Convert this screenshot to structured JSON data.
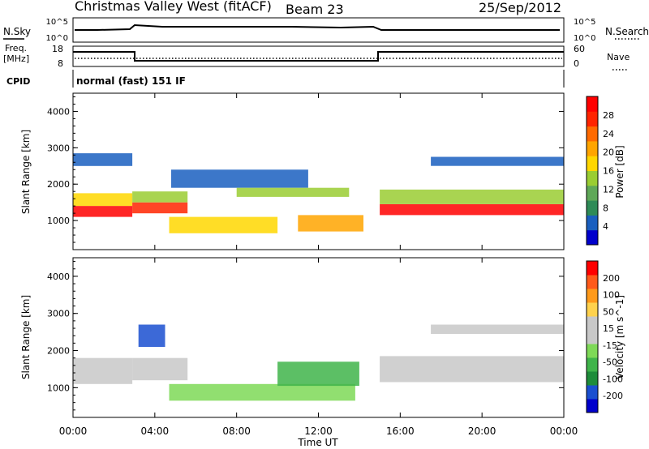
{
  "header": {
    "station": "Christmas Valley West (fitACF)",
    "beam": "Beam 23",
    "date": "25/Sep/2012"
  },
  "noise_panel": {
    "left_label": "N.Sky",
    "left_ticks": [
      "10^5",
      "10^0"
    ],
    "right_label": "N.Search",
    "right_ticks": [
      "10^5",
      "10^0"
    ]
  },
  "freq_panel": {
    "left_label_1": "Freq.",
    "left_label_2": "[MHz]",
    "left_ticks": [
      "18",
      "8"
    ],
    "right_label": "Nave",
    "right_ticks": [
      "60",
      "0"
    ]
  },
  "cpid": {
    "label": "CPID",
    "mode": "normal (fast) 151 IF"
  },
  "x_axis": {
    "title": "Time UT",
    "ticks": [
      "00:00",
      "04:00",
      "08:00",
      "12:00",
      "16:00",
      "20:00",
      "00:00"
    ]
  },
  "chart_data": [
    {
      "type": "heatmap",
      "name": "Power",
      "ylabel": "Slant Range [km]",
      "xlabel": "Time UT",
      "xlim_hours": [
        0,
        24
      ],
      "ylim": [
        200,
        4500
      ],
      "yticks": [
        "4000",
        "3000",
        "2000",
        "1000"
      ],
      "colorbar": {
        "title": "Power [dB]",
        "ticks": [
          "28",
          "24",
          "20",
          "16",
          "12",
          "8",
          "4"
        ],
        "colors": [
          "#0000cc",
          "#1a5fbf",
          "#2e8b57",
          "#5fa858",
          "#9acd32",
          "#ffd700",
          "#ffa500",
          "#ff6a00",
          "#ff2400",
          "#ff0000"
        ]
      },
      "bands": [
        {
          "t0": 0.0,
          "t1": 2.9,
          "r0": 1100,
          "r1": 1400,
          "level": 9
        },
        {
          "t0": 0.0,
          "t1": 2.9,
          "r0": 1400,
          "r1": 1750,
          "level": 5
        },
        {
          "t0": 0.0,
          "t1": 2.9,
          "r0": 2500,
          "r1": 2850,
          "level": 1
        },
        {
          "t0": 2.9,
          "t1": 5.6,
          "r0": 1200,
          "r1": 1500,
          "level": 8
        },
        {
          "t0": 2.9,
          "t1": 5.6,
          "r0": 1500,
          "r1": 1800,
          "level": 4
        },
        {
          "t0": 4.8,
          "t1": 11.5,
          "r0": 1900,
          "r1": 2400,
          "level": 1
        },
        {
          "t0": 8.0,
          "t1": 13.5,
          "r0": 1650,
          "r1": 1900,
          "level": 4
        },
        {
          "t0": 4.7,
          "t1": 10.0,
          "r0": 650,
          "r1": 1100,
          "level": 5
        },
        {
          "t0": 11.0,
          "t1": 14.2,
          "r0": 700,
          "r1": 1150,
          "level": 6
        },
        {
          "t0": 15.0,
          "t1": 24.0,
          "r0": 1150,
          "r1": 1450,
          "level": 9
        },
        {
          "t0": 15.0,
          "t1": 24.0,
          "r0": 1450,
          "r1": 1850,
          "level": 4
        },
        {
          "t0": 17.5,
          "t1": 24.0,
          "r0": 2500,
          "r1": 2750,
          "level": 1
        }
      ]
    },
    {
      "type": "heatmap",
      "name": "Velocity",
      "ylabel": "Slant Range [km]",
      "xlabel": "Time UT",
      "xlim_hours": [
        0,
        24
      ],
      "ylim": [
        200,
        4500
      ],
      "yticks": [
        "4000",
        "3000",
        "2000",
        "1000"
      ],
      "colorbar": {
        "title": "Velocity [m s^-1]",
        "ticks": [
          "200",
          "100",
          "50",
          "15",
          "-15",
          "-50",
          "-100",
          "-200"
        ],
        "colors": [
          "#0000cc",
          "#1a4fd0",
          "#1e8c3a",
          "#3fb44a",
          "#7ed957",
          "#c8c8c8",
          "#c8c8c8",
          "#ffd24d",
          "#ff9a1a",
          "#ff5a1a",
          "#ff0000"
        ]
      },
      "bands": [
        {
          "t0": 0.0,
          "t1": 2.9,
          "r0": 1100,
          "r1": 1800,
          "level": 5
        },
        {
          "t0": 2.9,
          "t1": 5.6,
          "r0": 1200,
          "r1": 1800,
          "level": 5
        },
        {
          "t0": 3.2,
          "t1": 4.5,
          "r0": 2100,
          "r1": 2700,
          "level": 1
        },
        {
          "t0": 15.0,
          "t1": 24.0,
          "r0": 1150,
          "r1": 1850,
          "level": 5
        },
        {
          "t0": 17.5,
          "t1": 24.0,
          "r0": 2450,
          "r1": 2700,
          "level": 5
        },
        {
          "t0": 4.7,
          "t1": 13.8,
          "r0": 650,
          "r1": 1100,
          "level": 4
        },
        {
          "t0": 10.0,
          "t1": 14.0,
          "r0": 1050,
          "r1": 1700,
          "level": 3
        }
      ]
    }
  ]
}
